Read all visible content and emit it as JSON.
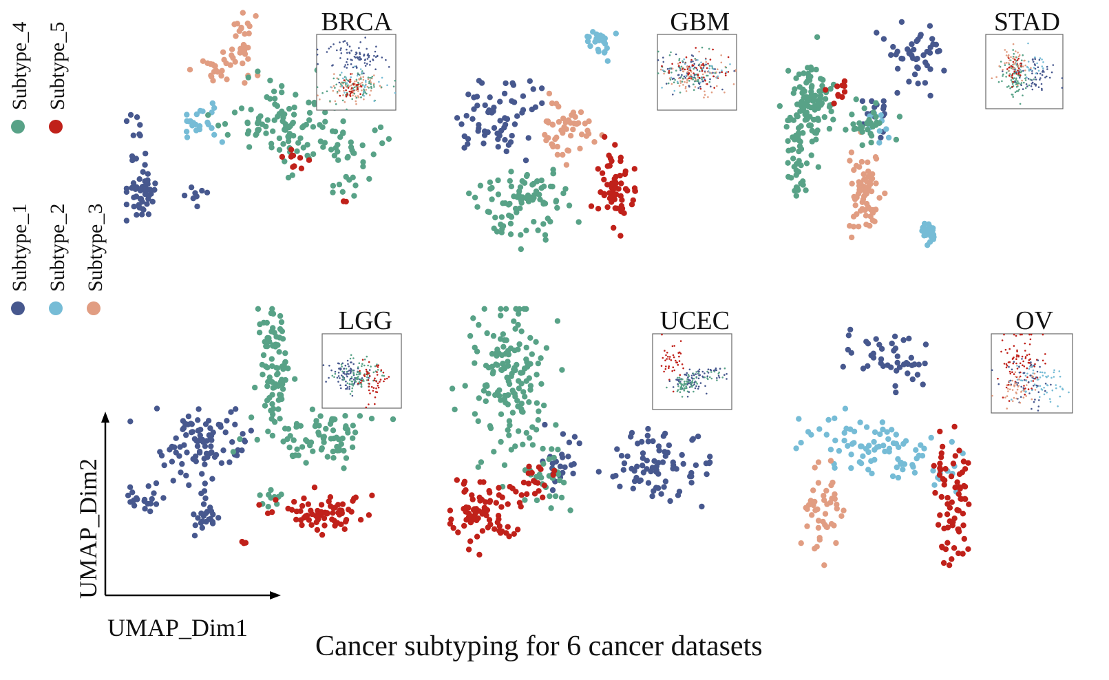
{
  "caption": "Cancer subtyping for 6 cancer datasets",
  "legend": [
    {
      "name": "Subtype_1",
      "color": "#47588e"
    },
    {
      "name": "Subtype_2",
      "color": "#76bcd6"
    },
    {
      "name": "Subtype_3",
      "color": "#e19d82"
    },
    {
      "name": "Subtype_4",
      "color": "#58a287"
    },
    {
      "name": "Subtype_5",
      "color": "#c0211a"
    }
  ],
  "axes": {
    "xlabel": "UMAP_Dim1",
    "ylabel": "UMAP_Dim2"
  },
  "chart_data": [
    {
      "type": "scatter",
      "title": "BRCA",
      "xlabel": "UMAP_Dim1",
      "ylabel": "UMAP_Dim2",
      "series": [
        {
          "name": "Subtype_1",
          "color": "#47588e",
          "clusters": [
            [
              0.06,
              0.74,
              0.03,
              0.05,
              45
            ],
            [
              0.04,
              0.54,
              0.02,
              0.08,
              12
            ],
            [
              0.27,
              0.73,
              0.02,
              0.02,
              8
            ]
          ]
        },
        {
          "name": "Subtype_2",
          "color": "#76bcd6",
          "clusters": [
            [
              0.28,
              0.44,
              0.04,
              0.05,
              25
            ]
          ]
        },
        {
          "name": "Subtype_3",
          "color": "#e19d82",
          "clusters": [
            [
              0.43,
              0.15,
              0.03,
              0.07,
              30
            ],
            [
              0.34,
              0.24,
              0.04,
              0.03,
              20
            ]
          ]
        },
        {
          "name": "Subtype_4",
          "color": "#58a287",
          "clusters": [
            [
              0.62,
              0.45,
              0.11,
              0.08,
              110
            ],
            [
              0.84,
              0.62,
              0.05,
              0.09,
              30
            ]
          ]
        },
        {
          "name": "Subtype_5",
          "color": "#c0211a",
          "clusters": [
            [
              0.63,
              0.59,
              0.02,
              0.02,
              10
            ],
            [
              0.82,
              0.76,
              0.01,
              0.01,
              2
            ]
          ]
        }
      ]
    },
    {
      "type": "scatter",
      "title": "GBM",
      "xlabel": "UMAP_Dim1",
      "ylabel": "UMAP_Dim2",
      "series": [
        {
          "name": "Subtype_1",
          "color": "#47588e",
          "clusters": [
            [
              0.2,
              0.42,
              0.09,
              0.07,
              65
            ]
          ]
        },
        {
          "name": "Subtype_2",
          "color": "#76bcd6",
          "clusters": [
            [
              0.63,
              0.14,
              0.03,
              0.04,
              22
            ]
          ]
        },
        {
          "name": "Subtype_3",
          "color": "#e19d82",
          "clusters": [
            [
              0.5,
              0.48,
              0.05,
              0.06,
              50
            ]
          ]
        },
        {
          "name": "Subtype_4",
          "color": "#58a287",
          "clusters": [
            [
              0.32,
              0.77,
              0.1,
              0.07,
              90
            ]
          ]
        },
        {
          "name": "Subtype_5",
          "color": "#c0211a",
          "clusters": [
            [
              0.7,
              0.7,
              0.05,
              0.07,
              60
            ]
          ]
        }
      ]
    },
    {
      "type": "scatter",
      "title": "STAD",
      "xlabel": "UMAP_Dim1",
      "ylabel": "UMAP_Dim2",
      "series": [
        {
          "name": "Subtype_1",
          "color": "#47588e",
          "clusters": [
            [
              0.71,
              0.19,
              0.08,
              0.06,
              45
            ],
            [
              0.54,
              0.42,
              0.05,
              0.04,
              15
            ]
          ]
        },
        {
          "name": "Subtype_2",
          "color": "#76bcd6",
          "clusters": [
            [
              0.78,
              0.87,
              0.02,
              0.02,
              30
            ],
            [
              0.53,
              0.45,
              0.03,
              0.03,
              10
            ]
          ]
        },
        {
          "name": "Subtype_3",
          "color": "#e19d82",
          "clusters": [
            [
              0.45,
              0.72,
              0.04,
              0.08,
              70
            ]
          ]
        },
        {
          "name": "Subtype_4",
          "color": "#58a287",
          "clusters": [
            [
              0.17,
              0.35,
              0.06,
              0.08,
              100
            ],
            [
              0.1,
              0.6,
              0.03,
              0.08,
              40
            ],
            [
              0.47,
              0.45,
              0.06,
              0.04,
              30
            ]
          ]
        },
        {
          "name": "Subtype_5",
          "color": "#c0211a",
          "clusters": [
            [
              0.33,
              0.33,
              0.02,
              0.02,
              10
            ]
          ]
        }
      ]
    },
    {
      "type": "scatter",
      "title": "LGG",
      "xlabel": "UMAP_Dim1",
      "ylabel": "UMAP_Dim2",
      "series": [
        {
          "name": "Subtype_1",
          "color": "#47588e",
          "clusters": [
            [
              0.28,
              0.52,
              0.08,
              0.08,
              90
            ],
            [
              0.08,
              0.72,
              0.04,
              0.03,
              20
            ],
            [
              0.3,
              0.78,
              0.03,
              0.06,
              25
            ]
          ]
        },
        {
          "name": "Subtype_2",
          "color": "#76bcd6",
          "clusters": []
        },
        {
          "name": "Subtype_3",
          "color": "#e19d82",
          "clusters": []
        },
        {
          "name": "Subtype_4",
          "color": "#58a287",
          "clusters": [
            [
              0.55,
              0.22,
              0.03,
              0.13,
              80
            ],
            [
              0.7,
              0.49,
              0.11,
              0.05,
              80
            ],
            [
              0.53,
              0.75,
              0.03,
              0.03,
              10
            ]
          ]
        },
        {
          "name": "Subtype_5",
          "color": "#c0211a",
          "clusters": [
            [
              0.74,
              0.79,
              0.08,
              0.03,
              70
            ],
            [
              0.43,
              0.9,
              0.01,
              0.01,
              3
            ]
          ]
        }
      ]
    },
    {
      "type": "scatter",
      "title": "UCEC",
      "xlabel": "UMAP_Dim1",
      "ylabel": "UMAP_Dim2",
      "series": [
        {
          "name": "Subtype_1",
          "color": "#47588e",
          "clusters": [
            [
              0.77,
              0.6,
              0.1,
              0.06,
              80
            ],
            [
              0.42,
              0.6,
              0.04,
              0.06,
              25
            ]
          ]
        },
        {
          "name": "Subtype_2",
          "color": "#76bcd6",
          "clusters": []
        },
        {
          "name": "Subtype_3",
          "color": "#e19d82",
          "clusters": []
        },
        {
          "name": "Subtype_4",
          "color": "#58a287",
          "clusters": [
            [
              0.25,
              0.3,
              0.07,
              0.16,
              160
            ],
            [
              0.37,
              0.68,
              0.05,
              0.06,
              25
            ]
          ]
        },
        {
          "name": "Subtype_5",
          "color": "#c0211a",
          "clusters": [
            [
              0.12,
              0.8,
              0.06,
              0.07,
              80
            ],
            [
              0.32,
              0.66,
              0.04,
              0.05,
              20
            ]
          ]
        }
      ]
    },
    {
      "type": "scatter",
      "title": "OV",
      "xlabel": "UMAP_Dim1",
      "ylabel": "UMAP_Dim2",
      "series": [
        {
          "name": "Subtype_1",
          "color": "#47588e",
          "clusters": [
            [
              0.44,
              0.2,
              0.08,
              0.06,
              45
            ]
          ]
        },
        {
          "name": "Subtype_2",
          "color": "#76bcd6",
          "clusters": [
            [
              0.3,
              0.5,
              0.12,
              0.05,
              50
            ],
            [
              0.5,
              0.6,
              0.1,
              0.05,
              40
            ]
          ]
        },
        {
          "name": "Subtype_3",
          "color": "#e19d82",
          "clusters": [
            [
              0.17,
              0.78,
              0.04,
              0.09,
              45
            ]
          ]
        },
        {
          "name": "Subtype_5",
          "color": "#c0211a",
          "clusters": [
            [
              0.68,
              0.75,
              0.04,
              0.12,
              70
            ]
          ]
        }
      ]
    }
  ],
  "insets": [
    {
      "panel": 0,
      "series": [
        {
          "name": "Subtype_1",
          "color": "#47588e",
          "clusters": [
            [
              0.5,
              0.3,
              0.2,
              0.12,
              90
            ]
          ]
        },
        {
          "name": "Subtype_3",
          "color": "#e19d82",
          "clusters": [
            [
              0.5,
              0.7,
              0.18,
              0.1,
              80
            ]
          ]
        },
        {
          "name": "Subtype_4",
          "color": "#58a287",
          "clusters": [
            [
              0.5,
              0.7,
              0.18,
              0.1,
              80
            ]
          ]
        },
        {
          "name": "Subtype_5",
          "color": "#c0211a",
          "clusters": [
            [
              0.45,
              0.72,
              0.1,
              0.06,
              30
            ]
          ]
        },
        {
          "name": "Subtype_2",
          "color": "#76bcd6",
          "clusters": [
            [
              0.55,
              0.65,
              0.2,
              0.12,
              25
            ]
          ]
        }
      ]
    },
    {
      "panel": 1,
      "series": [
        {
          "name": "Subtype_1",
          "color": "#47588e",
          "clusters": [
            [
              0.45,
              0.5,
              0.2,
              0.12,
              70
            ]
          ]
        },
        {
          "name": "Subtype_3",
          "color": "#e19d82",
          "clusters": [
            [
              0.45,
              0.55,
              0.2,
              0.12,
              70
            ]
          ]
        },
        {
          "name": "Subtype_4",
          "color": "#58a287",
          "clusters": [
            [
              0.45,
              0.5,
              0.2,
              0.12,
              60
            ]
          ]
        },
        {
          "name": "Subtype_5",
          "color": "#c0211a",
          "clusters": [
            [
              0.5,
              0.45,
              0.2,
              0.12,
              50
            ]
          ]
        },
        {
          "name": "Subtype_2",
          "color": "#76bcd6",
          "clusters": [
            [
              0.5,
              0.5,
              0.2,
              0.12,
              25
            ]
          ]
        }
      ]
    },
    {
      "panel": 2,
      "series": [
        {
          "name": "Subtype_4",
          "color": "#58a287",
          "clusters": [
            [
              0.38,
              0.55,
              0.08,
              0.14,
              90
            ]
          ]
        },
        {
          "name": "Subtype_1",
          "color": "#47588e",
          "clusters": [
            [
              0.62,
              0.55,
              0.15,
              0.12,
              60
            ]
          ]
        },
        {
          "name": "Subtype_3",
          "color": "#e19d82",
          "clusters": [
            [
              0.35,
              0.4,
              0.1,
              0.12,
              50
            ]
          ]
        },
        {
          "name": "Subtype_5",
          "color": "#c0211a",
          "clusters": [
            [
              0.38,
              0.45,
              0.06,
              0.1,
              25
            ]
          ]
        },
        {
          "name": "Subtype_2",
          "color": "#76bcd6",
          "clusters": [
            [
              0.6,
              0.45,
              0.15,
              0.15,
              20
            ]
          ]
        }
      ]
    },
    {
      "panel": 3,
      "series": [
        {
          "name": "Subtype_1",
          "color": "#47588e",
          "clusters": [
            [
              0.32,
              0.55,
              0.12,
              0.1,
              80
            ]
          ]
        },
        {
          "name": "Subtype_4",
          "color": "#58a287",
          "clusters": [
            [
              0.5,
              0.55,
              0.15,
              0.12,
              80
            ]
          ]
        },
        {
          "name": "Subtype_5",
          "color": "#c0211a",
          "clusters": [
            [
              0.66,
              0.65,
              0.08,
              0.14,
              50
            ]
          ]
        }
      ]
    },
    {
      "panel": 4,
      "series": [
        {
          "name": "Subtype_5",
          "color": "#c0211a",
          "clusters": [
            [
              0.25,
              0.35,
              0.08,
              0.15,
              40
            ]
          ]
        },
        {
          "name": "Subtype_1",
          "color": "#47588e",
          "clusters": [
            [
              0.45,
              0.65,
              0.1,
              0.07,
              50
            ],
            [
              0.75,
              0.52,
              0.15,
              0.04,
              30
            ]
          ]
        },
        {
          "name": "Subtype_4",
          "color": "#58a287",
          "clusters": [
            [
              0.4,
              0.68,
              0.08,
              0.06,
              50
            ],
            [
              0.7,
              0.55,
              0.15,
              0.04,
              20
            ]
          ]
        }
      ]
    },
    {
      "panel": 5,
      "series": [
        {
          "name": "Subtype_5",
          "color": "#c0211a",
          "clusters": [
            [
              0.38,
              0.4,
              0.12,
              0.2,
              90
            ]
          ]
        },
        {
          "name": "Subtype_1",
          "color": "#47588e",
          "clusters": [
            [
              0.45,
              0.6,
              0.15,
              0.15,
              50
            ]
          ]
        },
        {
          "name": "Subtype_2",
          "color": "#76bcd6",
          "clusters": [
            [
              0.6,
              0.6,
              0.2,
              0.12,
              60
            ]
          ]
        },
        {
          "name": "Subtype_3",
          "color": "#e19d82",
          "clusters": [
            [
              0.35,
              0.7,
              0.12,
              0.1,
              40
            ]
          ]
        }
      ]
    }
  ]
}
